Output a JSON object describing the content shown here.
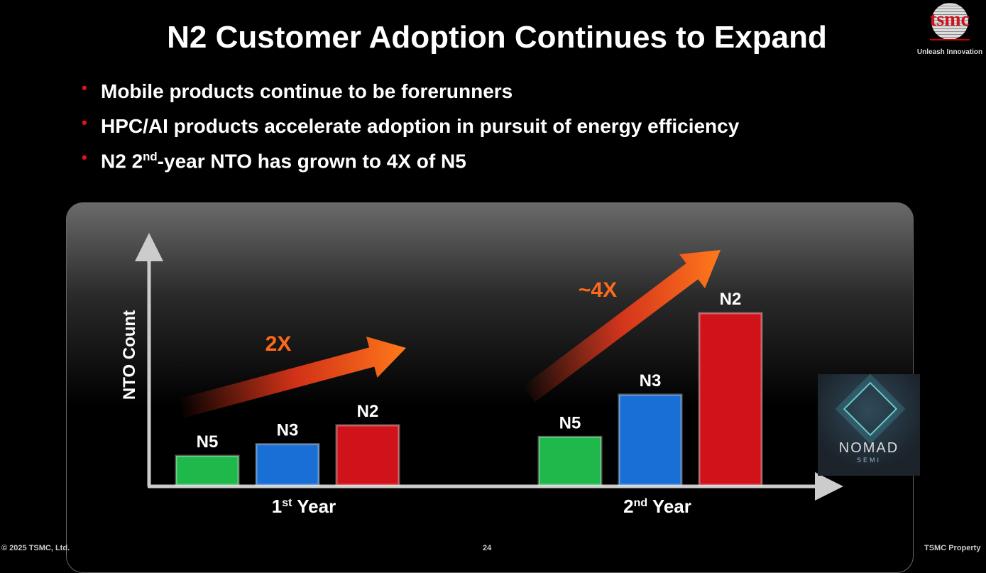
{
  "slide": {
    "title": "N2 Customer Adoption Continues to Expand",
    "logo": {
      "text": "tsmc",
      "tagline": "Unleash Innovation"
    },
    "bullets": [
      {
        "pre": "Mobile products continue to be forerunners"
      },
      {
        "pre": "HPC/AI products accelerate adoption in pursuit of energy efficiency"
      },
      {
        "pre": "N2 2",
        "sup": "nd",
        "post": "-year NTO has grown to 4X of N5"
      }
    ],
    "partner_logo": {
      "name": "NOMAD",
      "sub": "SEMI"
    },
    "footer": {
      "copyright": "© 2025 TSMC, Ltd.",
      "page": "24",
      "property": "TSMC Property"
    }
  },
  "chart_data": {
    "type": "bar",
    "ylabel": "NTO Count",
    "groups": [
      {
        "label": "1",
        "sup": "st",
        "post": " Year",
        "annotation": "2X"
      },
      {
        "label": "2",
        "sup": "nd",
        "post": " Year",
        "annotation": "~4X"
      }
    ],
    "series": [
      "N5",
      "N3",
      "N2"
    ],
    "values": [
      [
        1.0,
        1.4,
        2.05
      ],
      [
        1.65,
        3.1,
        5.9
      ]
    ],
    "colors": {
      "N5": "#1fb84a",
      "N3": "#1a6fd6",
      "N2": "#d0121a",
      "arrow": "#ff6a1a"
    },
    "y_ticks_shown": false
  }
}
